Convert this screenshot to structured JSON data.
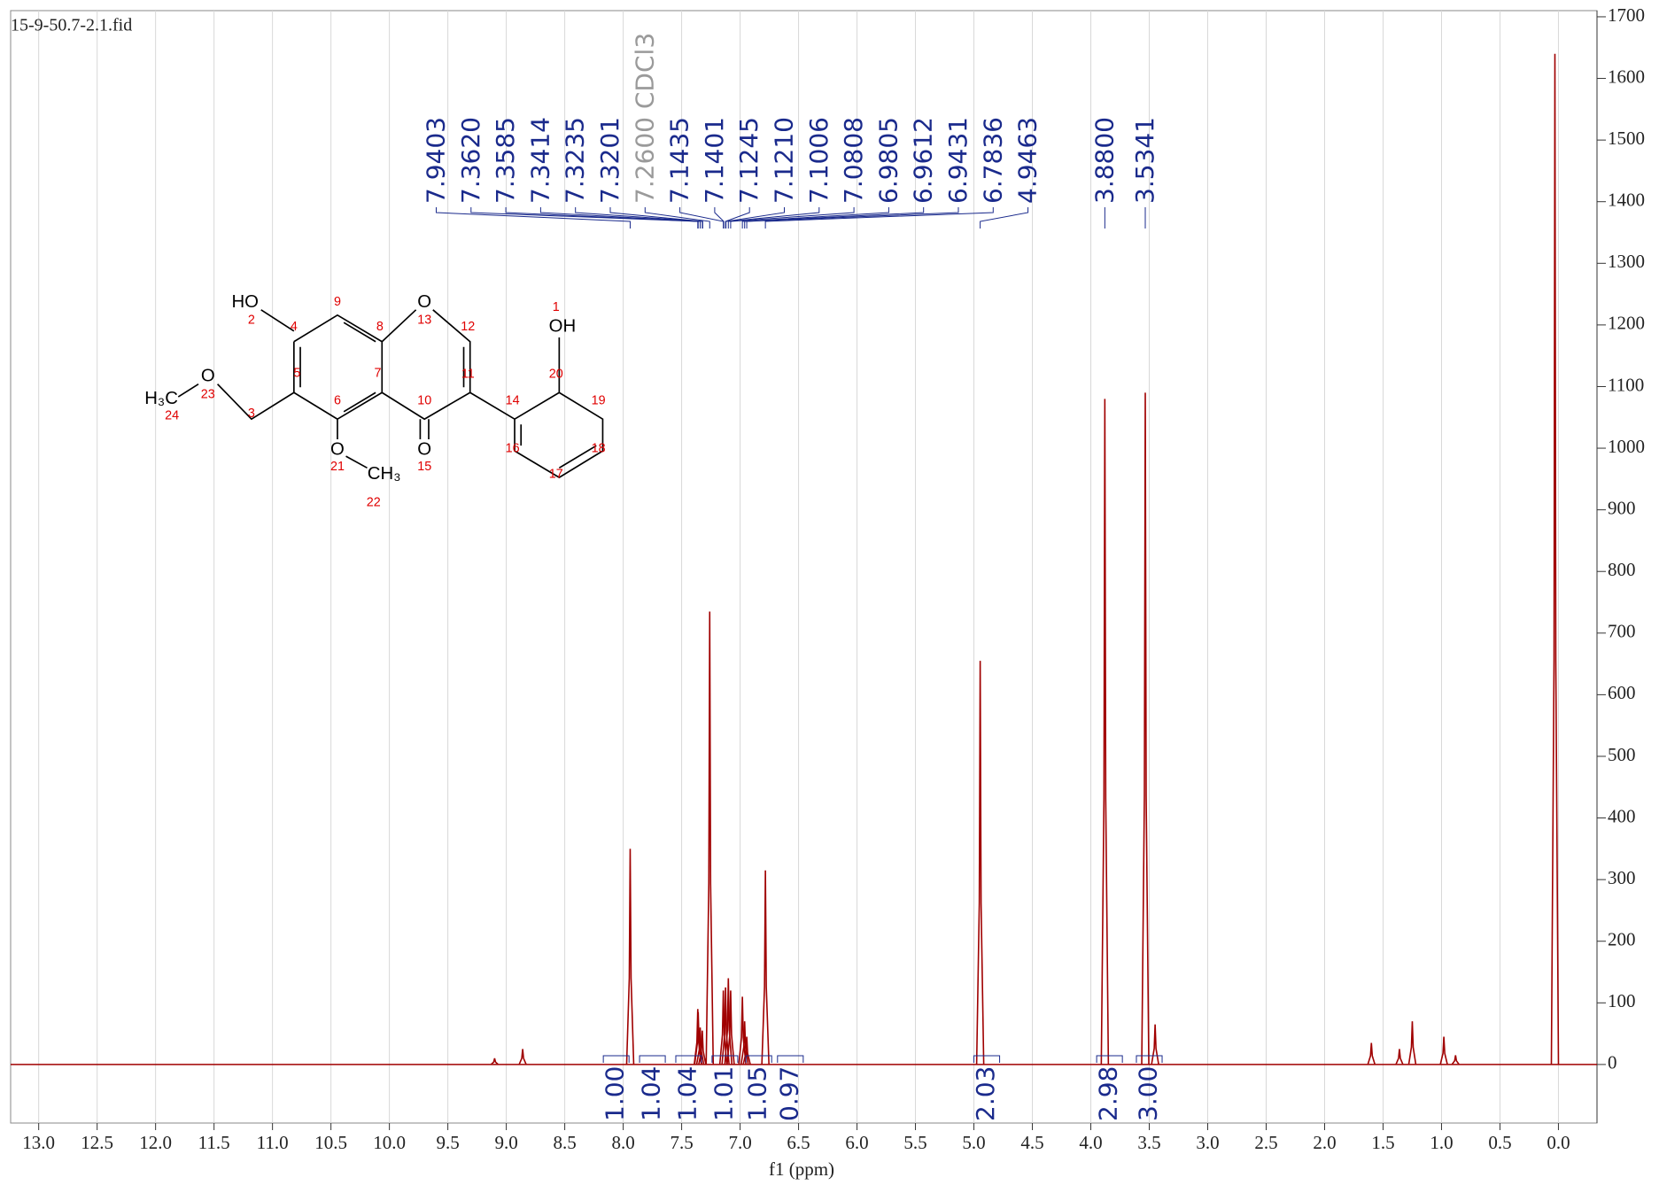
{
  "chart_data": {
    "type": "nmr",
    "file": "15-9-50.7-2.1.fid",
    "xlabel": "f1 (ppm)",
    "xlim": [
      13.24,
      -0.33
    ],
    "ylim": [
      -95,
      1710
    ],
    "xticks": [
      {
        "value": 13,
        "label": "13.0"
      },
      12.5,
      {
        "value": 12,
        "label": "12.0"
      },
      11.5,
      {
        "value": 11,
        "label": "11.0"
      },
      10.5,
      {
        "value": 10,
        "label": "10.0"
      },
      9.5,
      {
        "value": 9,
        "label": "9.0"
      },
      8.5,
      {
        "value": 8,
        "label": "8.0"
      },
      7.5,
      {
        "value": 7,
        "label": "7.0"
      },
      6.5,
      {
        "value": 6,
        "label": "6.0"
      },
      5.5,
      {
        "value": 5,
        "label": "5.0"
      },
      4.5,
      {
        "value": 4,
        "label": "4.0"
      },
      3.5,
      {
        "value": 3,
        "label": "3.0"
      },
      2.5,
      {
        "value": 2,
        "label": "2.0"
      },
      1.5,
      {
        "value": 1,
        "label": "1.0"
      },
      0.5,
      {
        "value": 0,
        "label": "0.0"
      }
    ],
    "yticks": [
      0,
      100,
      200,
      300,
      400,
      500,
      600,
      700,
      800,
      900,
      1000,
      1100,
      1200,
      1300,
      1400,
      1500,
      1600,
      1700
    ],
    "grid": true,
    "color": "#a00000",
    "x": [
      9.1,
      8.86,
      7.9403,
      7.362,
      7.3585,
      7.3414,
      7.3235,
      7.26,
      7.1435,
      7.1245,
      7.1006,
      7.0808,
      6.9805,
      6.9612,
      6.9431,
      6.7836,
      4.9463,
      3.88,
      3.5341,
      3.45,
      1.6,
      1.36,
      1.25,
      0.98,
      0.88,
      0.03
    ],
    "values": [
      10,
      25,
      350,
      90,
      85,
      60,
      55,
      735,
      120,
      125,
      140,
      120,
      110,
      70,
      45,
      315,
      655,
      1080,
      1090,
      65,
      35,
      25,
      70,
      45,
      15,
      1640
    ],
    "peak_labels": [
      7.9403,
      {
        "value": 7.362,
        "label": "7.3620"
      },
      7.3585,
      7.3414,
      7.3235,
      7.3201,
      {
        "value": 7.26,
        "label": "7.2600 CDCl3",
        "color": "#9a9a9a"
      },
      7.1435,
      7.1401,
      7.1245,
      {
        "value": 7.121,
        "label": "7.1210"
      },
      7.1006,
      7.0808,
      6.9805,
      6.9612,
      6.9431,
      6.7836,
      4.9463,
      {
        "value": 3.88,
        "label": "3.8800"
      },
      3.5341
    ],
    "integrals": [
      {
        "value": 1,
        "label": "1.00",
        "range": [
          8.17,
          7.95
        ]
      },
      {
        "value": 1.04,
        "label": "1.04",
        "range": [
          7.86,
          7.64
        ]
      },
      {
        "value": 1.04,
        "label": "1.04",
        "range": [
          7.55,
          7.33
        ]
      },
      {
        "value": 1.01,
        "label": "1.01",
        "range": [
          7.24,
          7.02
        ]
      },
      {
        "value": 1.05,
        "label": "1.05",
        "range": [
          6.95,
          6.73
        ]
      },
      {
        "value": 0.97,
        "label": "0.97",
        "range": [
          6.68,
          6.46
        ]
      },
      {
        "value": 2.03,
        "label": "2.03",
        "range": [
          5.0,
          4.78
        ]
      },
      {
        "value": 2.98,
        "label": "2.98",
        "range": [
          3.95,
          3.73
        ]
      },
      {
        "value": 3,
        "label": "3.00",
        "range": [
          3.61,
          3.39
        ]
      }
    ]
  },
  "structure": {
    "atoms": [
      "HO",
      "O",
      "O",
      "O",
      "H₃C",
      "O",
      "CH₃",
      "OH"
    ],
    "numbers": [
      "2",
      "9",
      "8",
      "13",
      "12",
      "11",
      "10",
      "15",
      "7",
      "6",
      "5",
      "4",
      "3",
      "23",
      "24",
      "21",
      "22",
      "14",
      "20",
      "1",
      "19",
      "18",
      "17",
      "16"
    ]
  }
}
